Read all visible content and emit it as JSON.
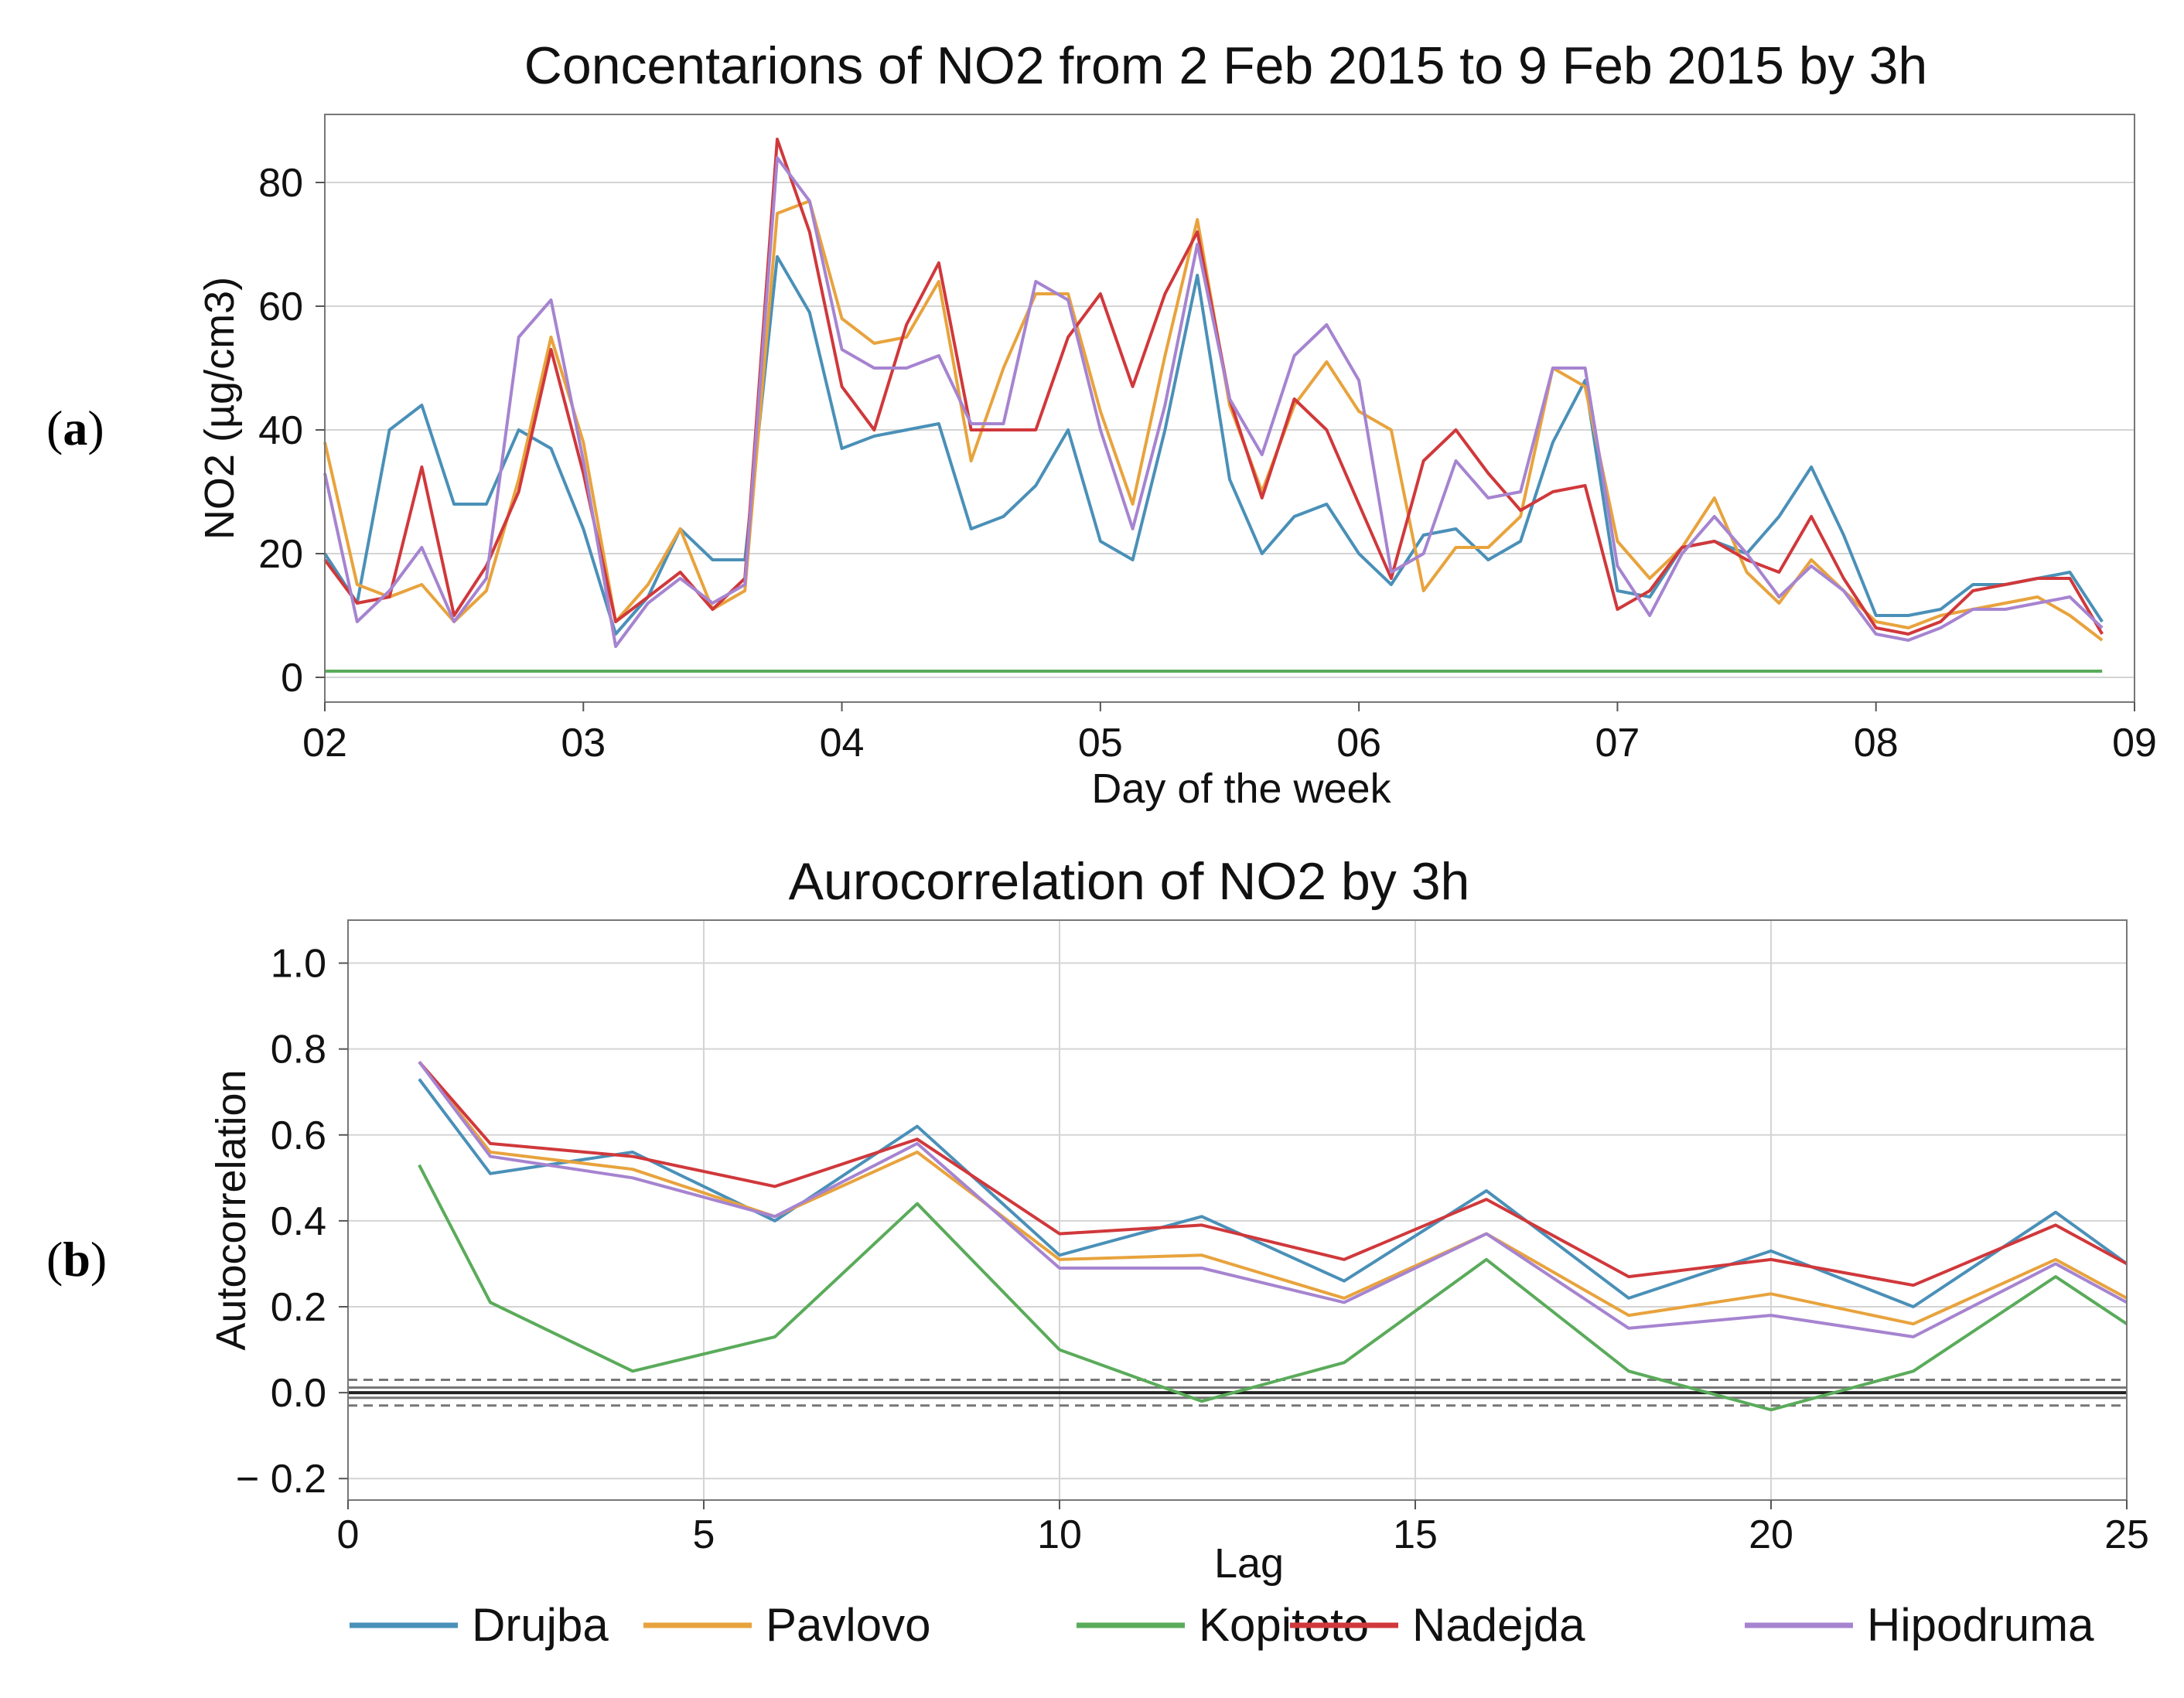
{
  "panel_labels": {
    "a_open": "(",
    "a_letter": "a",
    "a_close": ")",
    "b_open": "(",
    "b_letter": "b",
    "b_close": ")"
  },
  "series_colors": {
    "Drujba": "#4a90b8",
    "Pavlovo": "#e8a33d",
    "Kopitoto": "#5aab5a",
    "Nadejda": "#d0383b",
    "Hipodruma": "#a684d0"
  },
  "legend": [
    "Drujba",
    "Pavlovo",
    "Kopitoto",
    "Nadejda",
    "Hipodruma"
  ],
  "chart_data": [
    {
      "type": "line",
      "title": "Concentarions of NO2 from 2 Feb 2015 to 9 Feb 2015 by 3h",
      "xlabel": "Day of the week",
      "ylabel": "NO2 (µg/cm3)",
      "xlim": [
        0,
        56
      ],
      "ylim": [
        -4,
        91
      ],
      "yticks": [
        0,
        20,
        40,
        60,
        80
      ],
      "xticks": [
        0,
        8,
        16,
        24,
        32,
        40,
        48,
        56
      ],
      "xtick_labels": [
        "02",
        "03",
        "04",
        "05",
        "06",
        "07",
        "08",
        "09"
      ],
      "grid": "horizontal",
      "x_unit": "3h steps from 2 Feb 2015 00:00",
      "series": [
        {
          "name": "Drujba",
          "values": [
            20,
            12,
            40,
            44,
            28,
            28,
            40,
            37,
            24,
            7,
            13,
            24,
            19,
            19,
            68,
            59,
            37,
            39,
            40,
            41,
            24,
            26,
            31,
            40,
            22,
            19,
            40,
            65,
            32,
            20,
            26,
            28,
            20,
            15,
            23,
            24,
            19,
            22,
            38,
            48,
            14,
            13,
            21,
            22,
            20,
            26,
            34,
            23,
            10,
            10,
            11,
            15,
            15,
            16,
            17,
            9
          ]
        },
        {
          "name": "Pavlovo",
          "values": [
            38,
            15,
            13,
            15,
            9,
            14,
            32,
            55,
            38,
            9,
            15,
            24,
            11,
            14,
            75,
            77,
            58,
            54,
            55,
            64,
            35,
            50,
            62,
            62,
            43,
            28,
            52,
            74,
            44,
            30,
            44,
            51,
            43,
            40,
            14,
            21,
            21,
            26,
            50,
            47,
            22,
            16,
            21,
            29,
            17,
            12,
            19,
            14,
            9,
            8,
            10,
            11,
            12,
            13,
            10,
            6
          ]
        },
        {
          "name": "Kopitoto",
          "values": [
            1,
            1,
            1,
            1,
            1,
            1,
            1,
            1,
            1,
            1,
            1,
            1,
            1,
            1,
            1,
            1,
            1,
            1,
            1,
            1,
            1,
            1,
            1,
            1,
            1,
            1,
            1,
            1,
            1,
            1,
            1,
            1,
            1,
            1,
            1,
            1,
            1,
            1,
            1,
            1,
            1,
            1,
            1,
            1,
            1,
            1,
            1,
            1,
            1,
            1,
            1,
            1,
            1,
            1,
            1,
            1
          ]
        },
        {
          "name": "Nadejda",
          "values": [
            19,
            12,
            13,
            34,
            10,
            18,
            30,
            53,
            33,
            9,
            13,
            17,
            11,
            16,
            87,
            72,
            47,
            40,
            57,
            67,
            40,
            40,
            40,
            55,
            62,
            47,
            62,
            72,
            45,
            29,
            45,
            40,
            28,
            16,
            35,
            40,
            33,
            27,
            30,
            31,
            11,
            14,
            21,
            22,
            19,
            17,
            26,
            16,
            8,
            7,
            9,
            14,
            15,
            16,
            16,
            7
          ]
        },
        {
          "name": "Hipodruma",
          "values": [
            33,
            9,
            14,
            21,
            9,
            16,
            55,
            61,
            35,
            5,
            12,
            16,
            12,
            15,
            84,
            77,
            53,
            50,
            50,
            52,
            41,
            41,
            64,
            61,
            40,
            24,
            44,
            70,
            45,
            36,
            52,
            57,
            48,
            17,
            20,
            35,
            29,
            30,
            50,
            50,
            18,
            10,
            20,
            26,
            20,
            13,
            18,
            14,
            7,
            6,
            8,
            11,
            11,
            12,
            13,
            8
          ]
        }
      ]
    },
    {
      "type": "line",
      "title": "Aurocorrelation of NO2 by 3h",
      "xlabel": "Lag",
      "ylabel": "Autocorrelation",
      "xlim": [
        0,
        25
      ],
      "ylim": [
        -0.25,
        1.1
      ],
      "yticks": [
        -0.2,
        0.0,
        0.2,
        0.4,
        0.6,
        0.8,
        1.0
      ],
      "ytick_labels": [
        "− 0.2",
        "0.0",
        "0.2",
        "0.4",
        "0.6",
        "0.8",
        "1.0"
      ],
      "xticks": [
        0,
        5,
        10,
        15,
        20,
        25
      ],
      "xtick_labels": [
        "0",
        "5",
        "10",
        "15",
        "20",
        "25"
      ],
      "grid": "both",
      "reference_lines": [
        0.0
      ],
      "confidence_bands": [
        0.012,
        -0.012,
        0.03,
        -0.03
      ],
      "x": [
        1,
        2,
        4,
        6,
        8,
        10,
        12,
        14,
        16,
        18,
        20,
        22,
        24,
        25
      ],
      "series": [
        {
          "name": "Drujba",
          "values": [
            0.73,
            0.51,
            0.56,
            0.4,
            0.62,
            0.32,
            0.41,
            0.26,
            0.47,
            0.22,
            0.33,
            0.2,
            0.42,
            0.3
          ]
        },
        {
          "name": "Pavlovo",
          "values": [
            0.77,
            0.56,
            0.52,
            0.41,
            0.56,
            0.31,
            0.32,
            0.22,
            0.37,
            0.18,
            0.23,
            0.16,
            0.31,
            0.22
          ]
        },
        {
          "name": "Kopitoto",
          "values": [
            0.53,
            0.21,
            0.05,
            0.13,
            0.44,
            0.1,
            -0.02,
            0.07,
            0.31,
            0.05,
            -0.04,
            0.05,
            0.27,
            0.16
          ]
        },
        {
          "name": "Nadejda",
          "values": [
            0.77,
            0.58,
            0.55,
            0.48,
            0.59,
            0.37,
            0.39,
            0.31,
            0.45,
            0.27,
            0.31,
            0.25,
            0.39,
            0.3
          ]
        },
        {
          "name": "Hipodruma",
          "values": [
            0.77,
            0.55,
            0.5,
            0.41,
            0.58,
            0.29,
            0.29,
            0.21,
            0.37,
            0.15,
            0.18,
            0.13,
            0.3,
            0.21
          ]
        }
      ]
    }
  ]
}
